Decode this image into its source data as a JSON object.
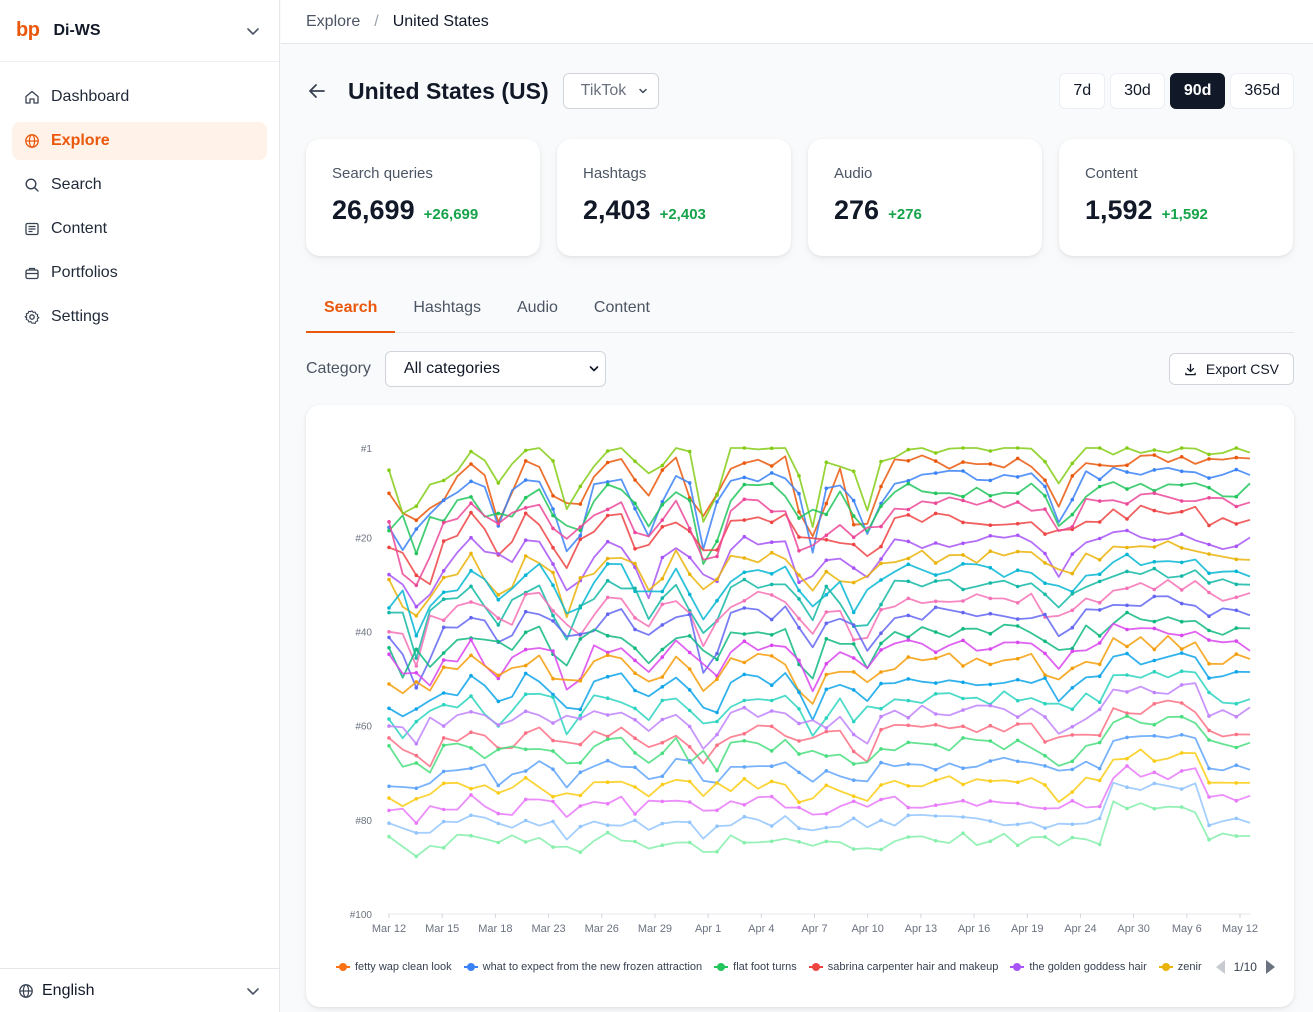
{
  "brand": {
    "logo": "bp",
    "workspace": "Di-WS"
  },
  "nav": [
    {
      "label": "Dashboard",
      "icon": "home-icon",
      "active": false
    },
    {
      "label": "Explore",
      "icon": "globe-icon",
      "active": true
    },
    {
      "label": "Search",
      "icon": "search-icon",
      "active": false
    },
    {
      "label": "Content",
      "icon": "newspaper-icon",
      "active": false
    },
    {
      "label": "Portfolios",
      "icon": "briefcase-icon",
      "active": false
    },
    {
      "label": "Settings",
      "icon": "gear-icon",
      "active": false
    }
  ],
  "footer": {
    "language": "English"
  },
  "breadcrumb": {
    "root": "Explore",
    "separator": "/",
    "current": "United States"
  },
  "header": {
    "title": "United States (US)",
    "platform": "TikTok"
  },
  "ranges": [
    {
      "label": "7d",
      "active": false
    },
    {
      "label": "30d",
      "active": false
    },
    {
      "label": "90d",
      "active": true
    },
    {
      "label": "365d",
      "active": false
    }
  ],
  "stats": [
    {
      "label": "Search queries",
      "value": "26,699",
      "delta": "+26,699"
    },
    {
      "label": "Hashtags",
      "value": "2,403",
      "delta": "+2,403"
    },
    {
      "label": "Audio",
      "value": "276",
      "delta": "+276"
    },
    {
      "label": "Content",
      "value": "1,592",
      "delta": "+1,592"
    }
  ],
  "tabs": [
    {
      "label": "Search",
      "active": true
    },
    {
      "label": "Hashtags",
      "active": false
    },
    {
      "label": "Audio",
      "active": false
    },
    {
      "label": "Content",
      "active": false
    }
  ],
  "filter": {
    "label": "Category",
    "value": "All categories"
  },
  "export_label": "Export CSV",
  "colors": {
    "accent": "#ea580c",
    "positive": "#16a34a"
  },
  "chart_data": {
    "type": "line",
    "y_axis": {
      "ticks": [
        "#1",
        "#20",
        "#40",
        "#60",
        "#80",
        "#100"
      ],
      "tick_values": [
        1,
        20,
        40,
        60,
        80,
        100
      ],
      "range": [
        1,
        100
      ],
      "inverted": true
    },
    "x_axis": {
      "ticks": [
        "Mar 12",
        "Mar 15",
        "Mar 18",
        "Mar 23",
        "Mar 26",
        "Mar 29",
        "Apr 1",
        "Apr 4",
        "Apr 7",
        "Apr 10",
        "Apr 13",
        "Apr 16",
        "Apr 19",
        "Apr 24",
        "Apr 30",
        "May 6",
        "May 12"
      ]
    },
    "x_range": [
      "Mar 10",
      "May 13"
    ],
    "legend": {
      "page": "1/10",
      "items": [
        {
          "name": "fetty wap clean look",
          "color": "#f97316"
        },
        {
          "name": "what to expect from the new frozen attraction",
          "color": "#3b82f6"
        },
        {
          "name": "flat foot turns",
          "color": "#22c55e"
        },
        {
          "name": "sabrina carpenter hair and makeup",
          "color": "#ef4444"
        },
        {
          "name": "the golden goddess hair",
          "color": "#a855f7"
        },
        {
          "name": "zenir",
          "color": "#eab308"
        }
      ]
    },
    "series_colors": [
      "#ea580c",
      "#84cc16",
      "#3b82f6",
      "#22c55e",
      "#ef4444",
      "#a855f7",
      "#eab308",
      "#ec4899",
      "#06b6d4",
      "#14b8a6",
      "#f472b6",
      "#6366f1",
      "#10b981",
      "#d946ef",
      "#f59e0b",
      "#0ea5e9",
      "#2dd4bf",
      "#c084fc",
      "#fb7185",
      "#4ade80",
      "#60a5fa",
      "#facc15",
      "#e879f9",
      "#93c5fd",
      "#86efac"
    ],
    "series_ranks": [
      4,
      1,
      7,
      10,
      16,
      21,
      24,
      13,
      27,
      30,
      33,
      36,
      40,
      43,
      46,
      50,
      54,
      57,
      61,
      64,
      68,
      72,
      76,
      80,
      84
    ],
    "note_values_estimated": true
  }
}
